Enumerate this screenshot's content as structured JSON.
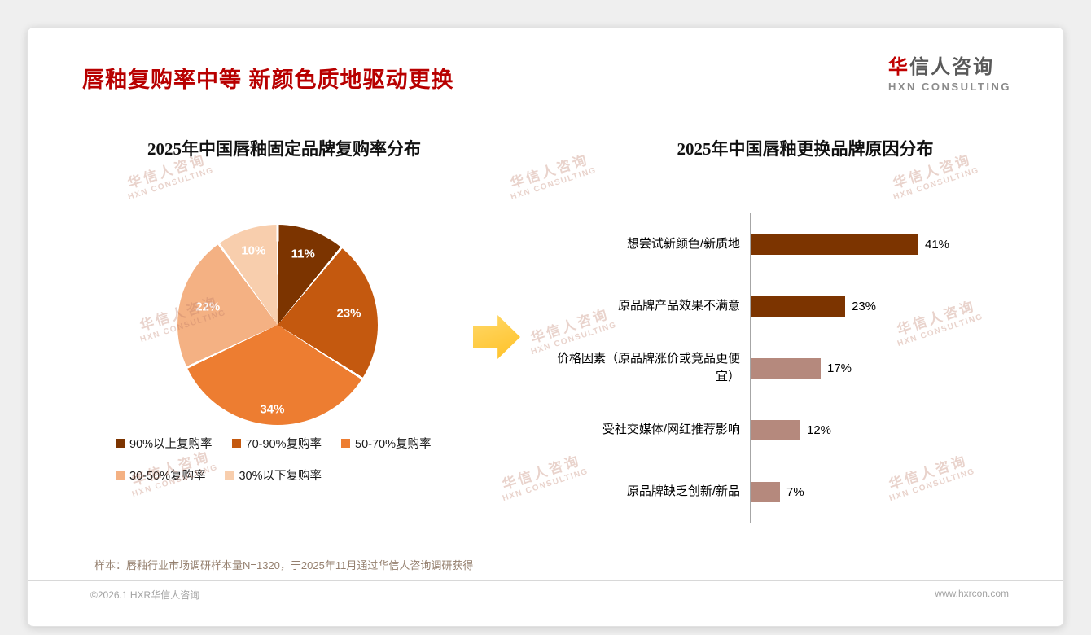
{
  "page": {
    "title": "唇釉复购率中等 新颜色质地驱动更换",
    "logo": {
      "brand_cn_accent": "华",
      "brand_cn_rest": "信人咨询",
      "brand_en": "HXN CONSULTING"
    },
    "watermark": {
      "line1": "华信人咨询",
      "line2": "HXN CONSULTING"
    },
    "footnote": "样本：唇釉行业市场调研样本量N=1320，于2025年11月通过华信人咨询调研获得",
    "footer_left": "©2026.1 HXR华信人咨询",
    "footer_right": "www.hxrcon.com"
  },
  "colors": {
    "title_red": "#b80000",
    "arrow_gold": "#ffc942",
    "axis_gray": "#a6a6a6",
    "bar_dark": "#7c3400",
    "bar_light": "#b5897d"
  },
  "chart_data": [
    {
      "type": "pie",
      "title": "2025年中国唇釉固定品牌复购率分布",
      "labels": [
        "90%以上复购率",
        "70-90%复购率",
        "50-70%复购率",
        "30-50%复购率",
        "30%以下复购率"
      ],
      "values": [
        11,
        23,
        34,
        22,
        10
      ],
      "value_labels": [
        "11%",
        "23%",
        "34%",
        "22%",
        "10%"
      ],
      "colors": [
        "#7c3400",
        "#c4590f",
        "#ed7d31",
        "#f4b183",
        "#f8cead"
      ],
      "legend_position": "bottom"
    },
    {
      "type": "bar",
      "orientation": "horizontal",
      "title": "2025年中国唇釉更换品牌原因分布",
      "categories": [
        "想尝试新颜色/新质地",
        "原品牌产品效果不满意",
        "价格因素（原品牌涨价或竞品更便宜）",
        "受社交媒体/网红推荐影响",
        "原品牌缺乏创新/新品"
      ],
      "values": [
        41,
        23,
        17,
        12,
        7
      ],
      "value_labels": [
        "41%",
        "23%",
        "17%",
        "12%",
        "7%"
      ],
      "bar_colors": [
        "#7c3400",
        "#7c3400",
        "#b5897d",
        "#b5897d",
        "#b5897d"
      ],
      "xlim": [
        0,
        50
      ],
      "grid": false
    }
  ]
}
